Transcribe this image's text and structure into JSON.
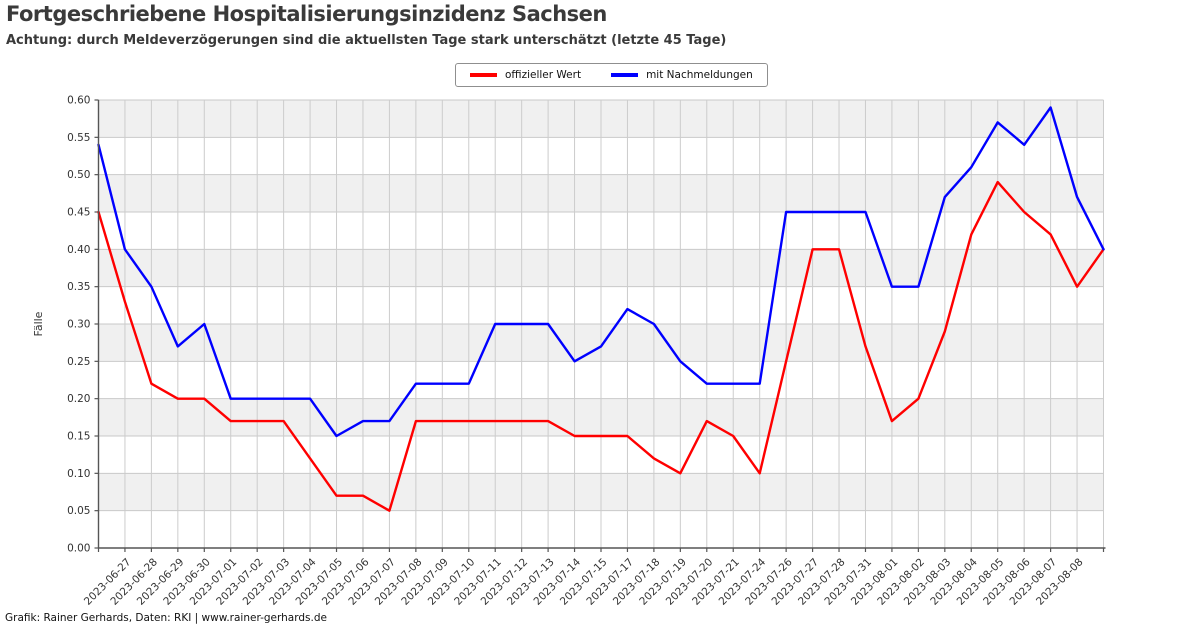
{
  "header": {
    "title": "Fortgeschriebene Hospitalisierungsinzidenz Sachsen",
    "subtitle": "Achtung: durch Meldeverzögerungen sind die aktuellsten Tage stark unterschätzt (letzte 45 Tage)"
  },
  "legend": {
    "items": [
      {
        "label": "offizieller Wert",
        "color": "#ff0000"
      },
      {
        "label": "mit Nachmeldungen",
        "color": "#0000ff"
      }
    ]
  },
  "chart_data": {
    "type": "line",
    "title": "Fortgeschriebene Hospitalisierungsinzidenz Sachsen",
    "subtitle": "Achtung: durch Meldeverzögerungen sind die aktuellsten Tage stark unterschätzt (letzte 45 Tage)",
    "xlabel": "",
    "ylabel": "Fälle",
    "ylim": [
      0.0,
      0.6
    ],
    "ytick_step": 0.05,
    "grid": true,
    "legend_position": "top-center",
    "band_fill": "#f0f0f0",
    "categories": [
      "",
      "2023-06-27",
      "2023-06-28",
      "2023-06-29",
      "2023-06-30",
      "2023-07-01",
      "2023-07-02",
      "2023-07-03",
      "2023-07-04",
      "2023-07-05",
      "2023-07-06",
      "2023-07-07",
      "2023-07-08",
      "2023-07-09",
      "2023-07-10",
      "2023-07-11",
      "2023-07-12",
      "2023-07-13",
      "2023-07-14",
      "2023-07-15",
      "2023-07-17",
      "2023-07-18",
      "2023-07-19",
      "2023-07-20",
      "2023-07-21",
      "2023-07-24",
      "2023-07-26",
      "2023-07-27",
      "2023-07-28",
      "2023-07-31",
      "2023-08-01",
      "2023-08-02",
      "2023-08-03",
      "2023-08-04",
      "2023-08-05",
      "2023-08-06",
      "2023-08-07",
      "2023-08-08",
      ""
    ],
    "series": [
      {
        "name": "offizieller Wert",
        "color": "#ff0000",
        "values": [
          0.45,
          0.33,
          0.22,
          0.2,
          0.2,
          0.17,
          0.17,
          0.17,
          0.12,
          0.07,
          0.07,
          0.05,
          0.17,
          0.17,
          0.17,
          0.17,
          0.17,
          0.17,
          0.15,
          0.15,
          0.15,
          0.12,
          0.1,
          0.17,
          0.15,
          0.1,
          0.25,
          0.4,
          0.4,
          0.27,
          0.17,
          0.2,
          0.29,
          0.42,
          0.49,
          0.45,
          0.42,
          0.35,
          0.4
        ]
      },
      {
        "name": "mit Nachmeldungen",
        "color": "#0000ff",
        "values": [
          0.54,
          0.4,
          0.35,
          0.27,
          0.3,
          0.2,
          0.2,
          0.2,
          0.2,
          0.15,
          0.17,
          0.17,
          0.22,
          0.22,
          0.22,
          0.3,
          0.3,
          0.3,
          0.25,
          0.27,
          0.32,
          0.3,
          0.25,
          0.22,
          0.22,
          0.22,
          0.45,
          0.45,
          0.45,
          0.45,
          0.35,
          0.35,
          0.47,
          0.51,
          0.57,
          0.54,
          0.59,
          0.47,
          0.4
        ]
      }
    ]
  },
  "footer": {
    "credit": "Grafik: Rainer Gerhards, Daten: RKI | www.rainer-gerhards.de"
  }
}
